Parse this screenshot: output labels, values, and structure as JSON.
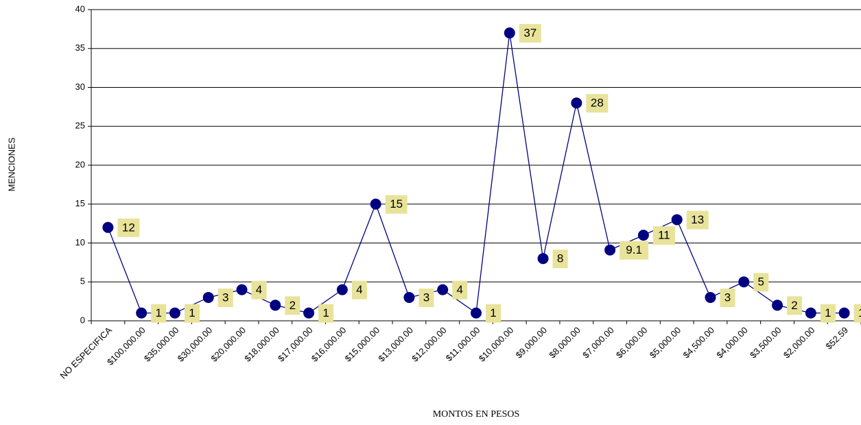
{
  "chart_data": {
    "type": "line",
    "x_label": "MONTOS EN PESOS",
    "y_label": "MENCIONES",
    "categories": [
      "NO ESPECIFICA",
      "$100,000.00",
      "$35,000.00",
      "$30,000.00",
      "$20,000.00",
      "$18,000.00",
      "$17,000.00",
      "$16,000.00",
      "$15,000.00",
      "$13,000.00",
      "$12,000.00",
      "$11,000.00",
      "$10,000.00",
      "$9,000.00",
      "$8,000.00",
      "$7,000.00",
      "$6,000.00",
      "$5,000.00",
      "$4,500.00",
      "$4,000.00",
      "$3,500.00",
      "$2,000.00",
      "$52.59"
    ],
    "values": [
      12,
      1,
      1,
      3,
      4,
      2,
      1,
      4,
      15,
      3,
      4,
      1,
      37,
      8,
      28,
      9.1,
      11,
      13,
      3,
      5,
      2,
      1,
      1
    ],
    "color": "#000080",
    "label_color": "#e8e39a",
    "ylim": [
      0,
      40
    ],
    "yticks": [
      0,
      5,
      10,
      15,
      20,
      25,
      30,
      35,
      40
    ],
    "grid": true
  }
}
